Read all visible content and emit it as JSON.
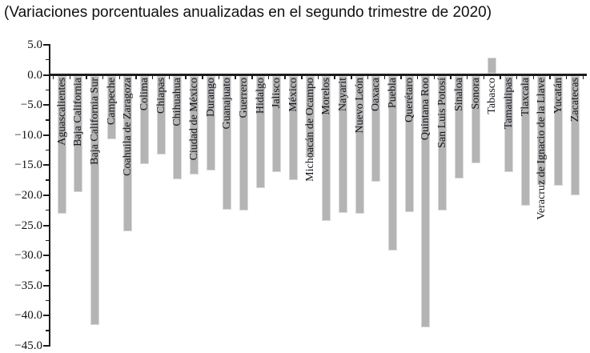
{
  "chart_data": {
    "type": "bar",
    "title": "(Variaciones porcentuales anualizadas en el segundo trimestre de 2020)",
    "xlabel": "",
    "ylabel": "",
    "ylim": [
      -45,
      5
    ],
    "ytick_step": 5,
    "ytick_labels": [
      "5.0",
      "0.0",
      "−5.0",
      "−10.0",
      "−15.0",
      "−20.0",
      "−25.0",
      "−30.0",
      "−35.0",
      "−40.0",
      "−45.0"
    ],
    "grid": false,
    "legend": false,
    "bar_color": "#b4b4b4",
    "bar_edge_color": "#d9d9d9",
    "axis_color": "#1c1c1c",
    "categories": [
      "Aguascalientes",
      "Baja California",
      "Baja California Sur",
      "Campeche",
      "Coahuila de Zaragoza",
      "Colima",
      "Chiapas",
      "Chihuahua",
      "Ciudad de México",
      "Durango",
      "Guanajuato",
      "Guerrero",
      "Hidalgo",
      "Jalisco",
      "México",
      "Michoacán de Ocampo",
      "Morelos",
      "Nayarit",
      "Nuevo León",
      "Oaxaca",
      "Puebla",
      "Querétaro",
      "Quintana Roo",
      "San Luis Potosí",
      "Sinaloa",
      "Sonora",
      "Tabasco",
      "Tamaulipas",
      "Tlaxcala",
      "Veracruz de Ignacio de la Llave",
      "Yucatán",
      "Zacatecas"
    ],
    "values": [
      -23.1,
      -19.5,
      -41.5,
      -10.7,
      -26.0,
      -14.8,
      -13.2,
      -17.4,
      -16.5,
      -15.9,
      -22.4,
      -22.6,
      -18.8,
      -16.2,
      -17.5,
      -13.7,
      -24.3,
      -23.0,
      -23.1,
      -17.8,
      -29.2,
      -22.8,
      -42.0,
      -22.6,
      -17.2,
      -14.7,
      2.8,
      -16.1,
      -21.7,
      -18.3,
      -18.4,
      -20.0
    ]
  }
}
